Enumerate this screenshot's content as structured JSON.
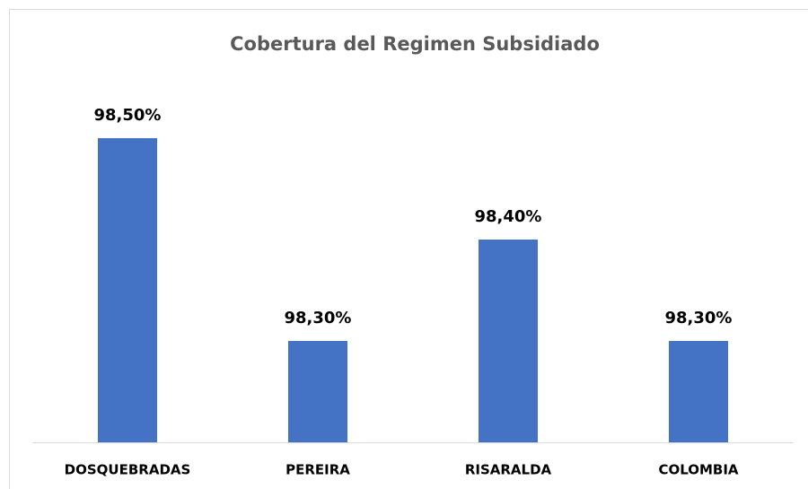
{
  "chart_data": {
    "type": "bar",
    "title": "Cobertura del Regimen Subsidiado",
    "categories": [
      "DOSQUEBRADAS",
      "PEREIRA",
      "RISARALDA",
      "COLOMBIA"
    ],
    "values": [
      98.5,
      98.3,
      98.4,
      98.3
    ],
    "value_labels": [
      "98,50%",
      "98,30%",
      "98,40%",
      "98,30%"
    ],
    "color": "#4472c4",
    "ylim": [
      98.2,
      98.55
    ]
  }
}
